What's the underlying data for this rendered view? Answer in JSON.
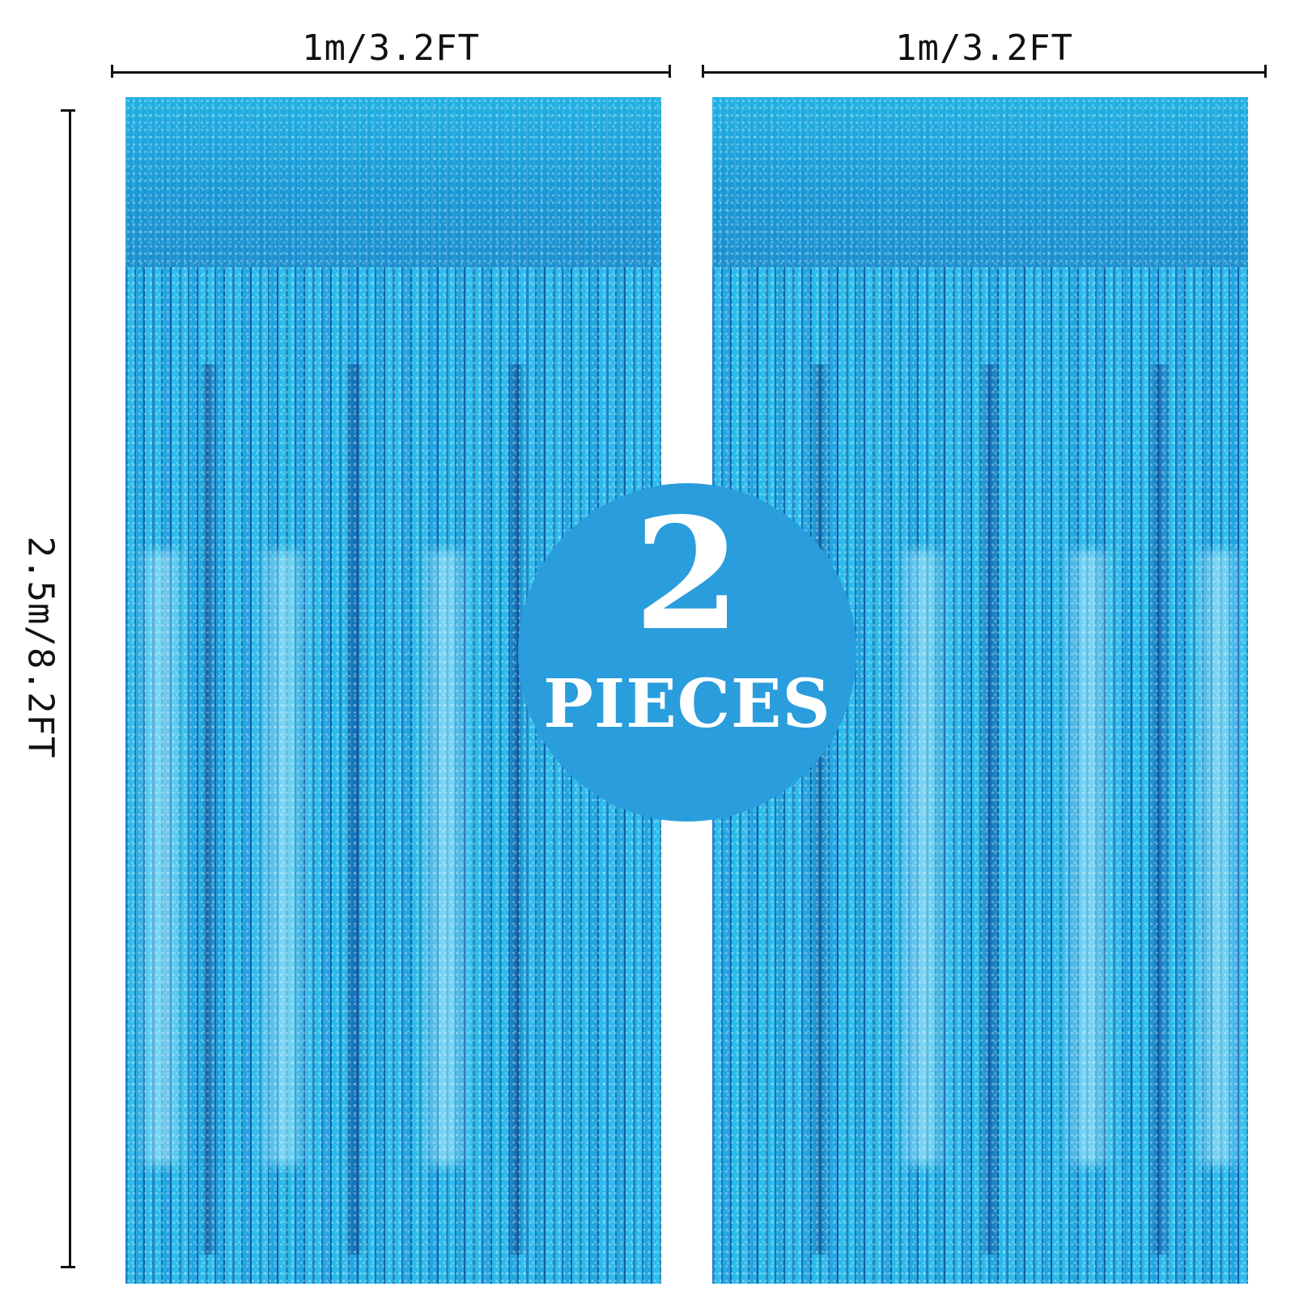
{
  "dimensions": {
    "top_left_width": "1m/3.2FT",
    "top_right_width": "1m/3.2FT",
    "side_height": "2.5m/8.2FT"
  },
  "badge": {
    "count": "2",
    "label": "PIECES",
    "color": "#2a9ddc"
  },
  "curtains": {
    "count": 2,
    "color": "#1f9fd8",
    "style": "metallic holographic tinsel foil fringe"
  }
}
